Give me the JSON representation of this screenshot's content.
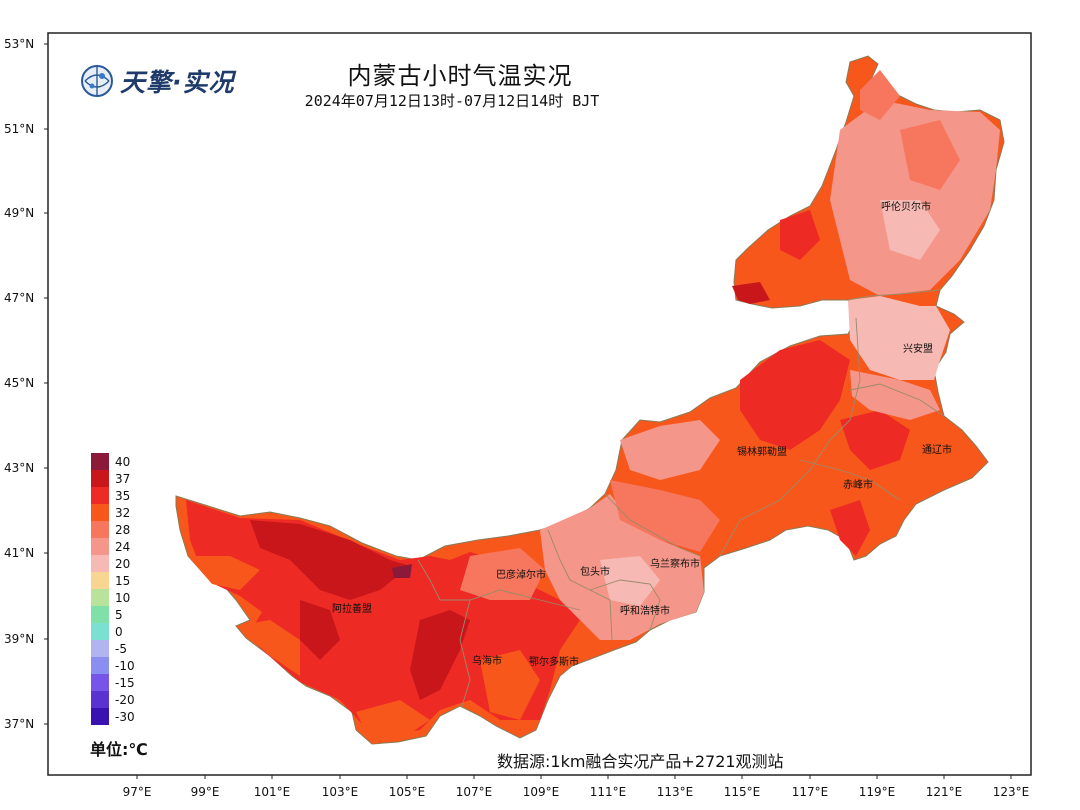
{
  "title": "内蒙古小时气温实况",
  "subtitle": "2024年07月12日13时-07月12日14时 BJT",
  "logo_text": "天擎·实况",
  "unit_label": "单位:℃",
  "source": "数据源:1km融合实况产品+2721观测站",
  "lat_labels": [
    "53°N",
    "51°N",
    "49°N",
    "47°N",
    "45°N",
    "43°N",
    "41°N",
    "39°N",
    "37°N"
  ],
  "lon_labels": [
    "97°E",
    "99°E",
    "101°E",
    "103°E",
    "105°E",
    "107°E",
    "109°E",
    "111°E",
    "113°E",
    "115°E",
    "117°E",
    "119°E",
    "121°E",
    "123°E"
  ],
  "legend": [
    {
      "label": "40",
      "color": "#8b1a3a"
    },
    {
      "label": "37",
      "color": "#c8161a"
    },
    {
      "label": "35",
      "color": "#ee2a24"
    },
    {
      "label": "32",
      "color": "#f8571c"
    },
    {
      "label": "28",
      "color": "#f7765e"
    },
    {
      "label": "24",
      "color": "#f5968a"
    },
    {
      "label": "20",
      "color": "#f7b9b3"
    },
    {
      "label": "15",
      "color": "#f9d592"
    },
    {
      "label": "10",
      "color": "#b9e39a"
    },
    {
      "label": "5",
      "color": "#7fe0a8"
    },
    {
      "label": "0",
      "color": "#7be0d0"
    },
    {
      "label": "-5",
      "color": "#b0b4ef"
    },
    {
      "label": "-10",
      "color": "#8a8ef0"
    },
    {
      "label": "-15",
      "color": "#7655e8"
    },
    {
      "label": "-20",
      "color": "#5a32d0"
    },
    {
      "label": "-30",
      "color": "#3a12b0"
    }
  ],
  "cities": [
    {
      "name": "呼伦贝尔市"
    },
    {
      "name": "兴安盟"
    },
    {
      "name": "锡林郭勒盟"
    },
    {
      "name": "通辽市"
    },
    {
      "name": "赤峰市"
    },
    {
      "name": "乌兰察布市"
    },
    {
      "name": "巴彦淖尔市"
    },
    {
      "name": "包头市"
    },
    {
      "name": "呼和浩特市"
    },
    {
      "name": "阿拉善盟"
    },
    {
      "name": "乌海市"
    },
    {
      "name": "鄂尔多斯市"
    }
  ]
}
